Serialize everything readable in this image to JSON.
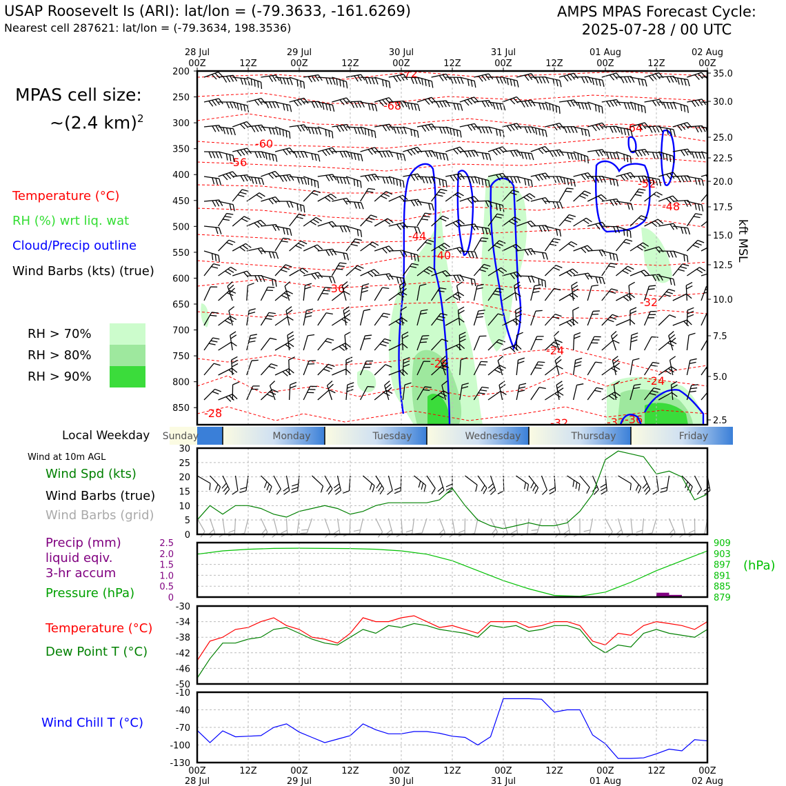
{
  "header": {
    "title": "USAP Roosevelt Is (ARI): lat/lon = (-79.3633, -161.6269)",
    "subtitle": "Nearest cell 287621: lat/lon = (-79.3634, 198.3536)",
    "cycle_title": "AMPS MPAS Forecast Cycle:",
    "cycle_date": "2025-07-28 / 00 UTC"
  },
  "cell_size": {
    "line1": "MPAS cell size:",
    "line2": "~(2.4 km)",
    "exponent": "2"
  },
  "legend": {
    "temperature": "Temperature (°C)",
    "rh": "RH (%) wrt liq. wat",
    "cloud": "Cloud/Precip outline",
    "barbs": "Wind Barbs (kts) (true)",
    "rh70": "RH > 70%",
    "rh80": "RH > 80%",
    "rh90": "RH > 90%"
  },
  "colors": {
    "temperature": "#ff0000",
    "rh70": "#ccfccc",
    "rh80": "#9ee89e",
    "rh90": "#3bdc3b",
    "cloud": "#0000ff",
    "dewpoint": "#008000",
    "pressure": "#00c000",
    "precip": "#800080",
    "windchill": "#0000ff",
    "wind_speed": "#008000"
  },
  "time_axis": {
    "top_dates": [
      "28 Jul",
      "29 Jul",
      "30 Jul",
      "31 Jul",
      "01 Aug",
      "02 Aug"
    ],
    "hour_labels": [
      "00Z",
      "12Z",
      "00Z",
      "12Z",
      "00Z",
      "12Z",
      "00Z",
      "12Z",
      "00Z",
      "12Z",
      "00Z"
    ],
    "range_hours": [
      0,
      120
    ]
  },
  "upper_panel": {
    "pressure_ticks": [
      "200",
      "250",
      "300",
      "350",
      "400",
      "450",
      "500",
      "550",
      "600",
      "650",
      "700",
      "750",
      "800",
      "850"
    ],
    "kft_ticks": [
      "35.0",
      "30.0",
      "25.0",
      "22.5",
      "20.0",
      "17.5",
      "15.0",
      "12.5",
      "10.0",
      "7.5",
      "5.0",
      "2.5"
    ],
    "right_label": "kft MSL",
    "temperature_labels": [
      "-72",
      "-68",
      "-64",
      "-60",
      "-56",
      "-52",
      "-48",
      "-44",
      "-40",
      "-36",
      "-32",
      "-28",
      "-24",
      "-24",
      "-28",
      "-32",
      "-32",
      "-36"
    ]
  },
  "weekday_bar": {
    "label": "Local Weekday",
    "days": [
      "Sunday",
      "Monday",
      "Tuesday",
      "Wednesday",
      "Thursday",
      "Friday"
    ]
  },
  "wind_panel": {
    "heading": "Wind at 10m AGL",
    "labels": [
      "Wind Spd (kts)",
      "Wind Barbs (true)",
      "Wind Barbs (grid)"
    ],
    "y_ticks": [
      "0",
      "5",
      "10",
      "15",
      "20",
      "25",
      "30"
    ]
  },
  "precip_panel": {
    "labels": [
      "Precip (mm)",
      "liquid eqiv.",
      "3-hr accum",
      "Pressure (hPa)"
    ],
    "left_ticks": [
      "0",
      "0.5",
      "1.0",
      "1.5",
      "2.0",
      "2.5"
    ],
    "right_ticks": [
      "879",
      "885",
      "891",
      "897",
      "903",
      "909"
    ],
    "right_unit": "(hPa)"
  },
  "temp_panel": {
    "labels": [
      "Temperature (°C)",
      "Dew Point T (°C)"
    ],
    "y_ticks": [
      "-50",
      "-46",
      "-42",
      "-38",
      "-34",
      "-30"
    ]
  },
  "chill_panel": {
    "label": "Wind Chill T (°C)",
    "y_ticks": [
      "-130",
      "-100",
      "-70",
      "-40",
      "-10"
    ]
  },
  "chart_data": [
    {
      "type": "line",
      "title": "Wind at 10m AGL",
      "ylabel": "Wind Spd (kts)",
      "x": [
        0,
        3,
        6,
        9,
        12,
        15,
        18,
        21,
        24,
        27,
        30,
        33,
        36,
        39,
        42,
        45,
        48,
        51,
        54,
        57,
        60,
        63,
        66,
        69,
        72,
        75,
        78,
        81,
        84,
        87,
        90,
        93,
        96,
        99,
        102,
        105,
        108,
        111,
        114,
        117,
        120
      ],
      "ylim": [
        0,
        30
      ],
      "series": [
        {
          "name": "Wind Spd (kts)",
          "values": [
            5,
            10,
            7,
            10,
            10,
            9,
            7,
            6,
            8,
            9,
            10,
            9,
            7,
            8,
            10,
            11,
            11,
            11,
            11,
            12,
            16,
            10,
            5,
            3,
            2,
            3,
            4,
            3,
            3,
            4,
            8,
            14,
            26,
            29,
            28,
            27,
            21,
            22,
            20,
            12,
            14
          ]
        }
      ]
    },
    {
      "type": "line",
      "title": "Precip / Pressure",
      "x": [
        0,
        6,
        12,
        18,
        24,
        30,
        36,
        42,
        48,
        54,
        60,
        66,
        72,
        78,
        84,
        90,
        96,
        102,
        108,
        114,
        120
      ],
      "series": [
        {
          "name": "Pressure (hPa)",
          "axis": "right",
          "ylim": [
            879,
            912
          ],
          "values": [
            905,
            907,
            908,
            908.5,
            908.6,
            908.5,
            908.4,
            908,
            907,
            905,
            901,
            895,
            889,
            884,
            880,
            879.5,
            882,
            888,
            895,
            901,
            907
          ]
        },
        {
          "name": "Precip (mm)",
          "axis": "left",
          "ylim": [
            0,
            2.5
          ],
          "type": "bar",
          "x": [
            108,
            111
          ],
          "values": [
            0.2,
            0.1
          ]
        }
      ]
    },
    {
      "type": "line",
      "title": "Temperature / Dew Point",
      "x": [
        0,
        3,
        6,
        9,
        12,
        15,
        18,
        21,
        24,
        27,
        30,
        33,
        36,
        39,
        42,
        45,
        48,
        51,
        54,
        57,
        60,
        63,
        66,
        69,
        72,
        75,
        78,
        81,
        84,
        87,
        90,
        93,
        96,
        99,
        102,
        105,
        108,
        111,
        114,
        117,
        120
      ],
      "ylim": [
        -50,
        -30
      ],
      "series": [
        {
          "name": "Temperature (°C)",
          "values": [
            -44,
            -39,
            -38,
            -36,
            -35.5,
            -34,
            -33,
            -35,
            -36,
            -38,
            -38.5,
            -39.5,
            -37,
            -33,
            -34,
            -34,
            -33,
            -32.5,
            -34,
            -35.5,
            -35,
            -36,
            -37,
            -34,
            -34,
            -34,
            -35.5,
            -35,
            -34,
            -34,
            -35,
            -39,
            -40,
            -37,
            -37.5,
            -35,
            -34,
            -34.5,
            -35,
            -36,
            -34
          ]
        },
        {
          "name": "Dew Point T (°C)",
          "values": [
            -48.5,
            -43.5,
            -39.5,
            -39.5,
            -38.5,
            -38,
            -36,
            -35.5,
            -37,
            -38.5,
            -39.5,
            -40,
            -38,
            -36,
            -37,
            -35,
            -35.5,
            -34.5,
            -35,
            -36,
            -36.5,
            -37,
            -38,
            -35,
            -35.5,
            -35,
            -36.5,
            -36,
            -35,
            -35,
            -36,
            -40,
            -42,
            -40,
            -40.5,
            -37,
            -36,
            -37,
            -37.5,
            -38,
            -36
          ]
        }
      ]
    },
    {
      "type": "line",
      "title": "Wind Chill",
      "ylabel": "Wind Chill T (°C)",
      "x": [
        0,
        3,
        6,
        9,
        12,
        15,
        18,
        21,
        24,
        27,
        30,
        33,
        36,
        39,
        42,
        45,
        48,
        51,
        54,
        57,
        60,
        63,
        66,
        69,
        72,
        75,
        78,
        81,
        84,
        87,
        90,
        93,
        96,
        99,
        102,
        105,
        108,
        111,
        114,
        117,
        120
      ],
      "ylim": [
        -130,
        -10
      ],
      "series": [
        {
          "name": "Wind Chill T (°C)",
          "values": [
            -75,
            -96,
            -76,
            -86,
            -85,
            -84,
            -70,
            -64,
            -78,
            -87,
            -96,
            -90,
            -84,
            -64,
            -74,
            -81,
            -81,
            -77,
            -77,
            -80,
            -85,
            -87,
            -100,
            -86,
            -21,
            -21,
            -21,
            -22,
            -44,
            -40,
            -40,
            -83,
            -98,
            -123,
            -123,
            -122,
            -115,
            -107,
            -110,
            -91,
            -93
          ]
        }
      ]
    }
  ]
}
